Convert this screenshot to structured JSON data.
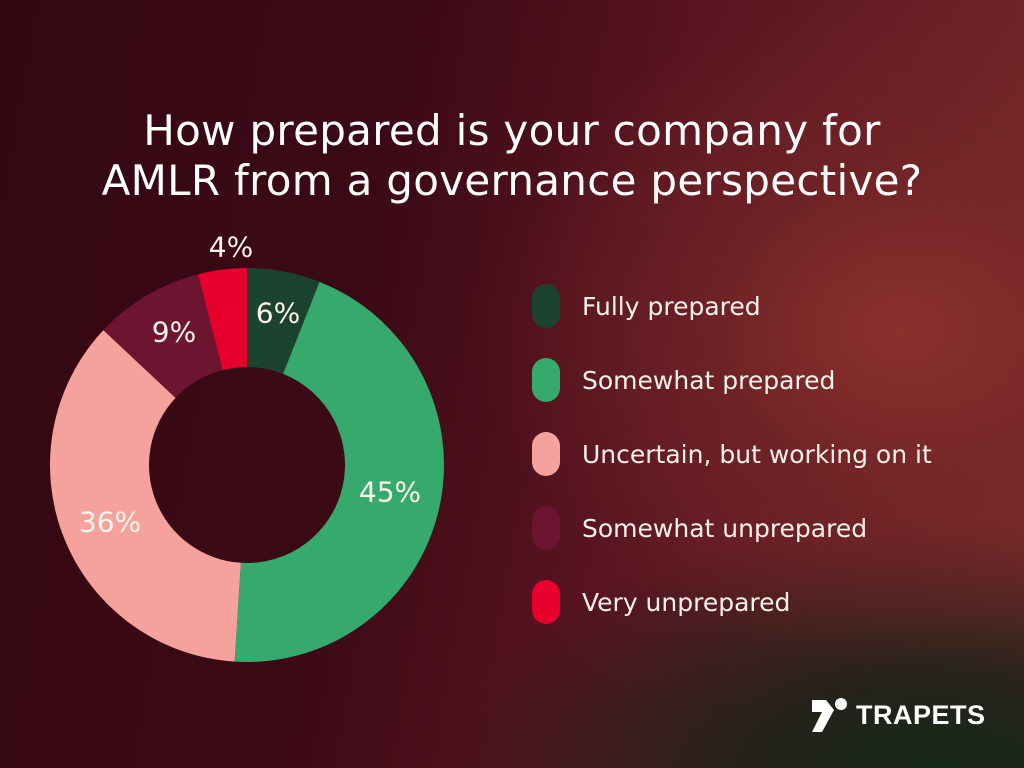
{
  "title": {
    "line1": "How prepared is your company for",
    "line2": "AMLR from a governance perspective?"
  },
  "chart_data": {
    "type": "pie",
    "subtype": "donut",
    "title": "How prepared is your company for AMLR from a governance perspective?",
    "categories": [
      "Fully prepared",
      "Somewhat prepared",
      "Uncertain, but working on it",
      "Somewhat unprepared",
      "Very unprepared"
    ],
    "values": [
      6,
      45,
      36,
      9,
      4
    ],
    "unit": "%",
    "colors": [
      "#1c4330",
      "#36a96c",
      "#f4a29b",
      "#6d1530",
      "#e8002d"
    ],
    "legend_position": "right",
    "start_angle": "12 o'clock, clockwise"
  },
  "labels": {
    "fully": "6%",
    "somewhat": "45%",
    "uncertain": "36%",
    "unprepared": "9%",
    "very": "4%"
  },
  "legend": [
    {
      "label": "Fully prepared",
      "color": "#1c4330"
    },
    {
      "label": "Somewhat prepared",
      "color": "#36a96c"
    },
    {
      "label": "Uncertain, but working on it",
      "color": "#f4a29b"
    },
    {
      "label": "Somewhat unprepared",
      "color": "#6d1530"
    },
    {
      "label": "Very unprepared",
      "color": "#e8002d"
    }
  ],
  "brand": {
    "name": "TRAPETS",
    "icon": "trapets-logo-icon"
  }
}
